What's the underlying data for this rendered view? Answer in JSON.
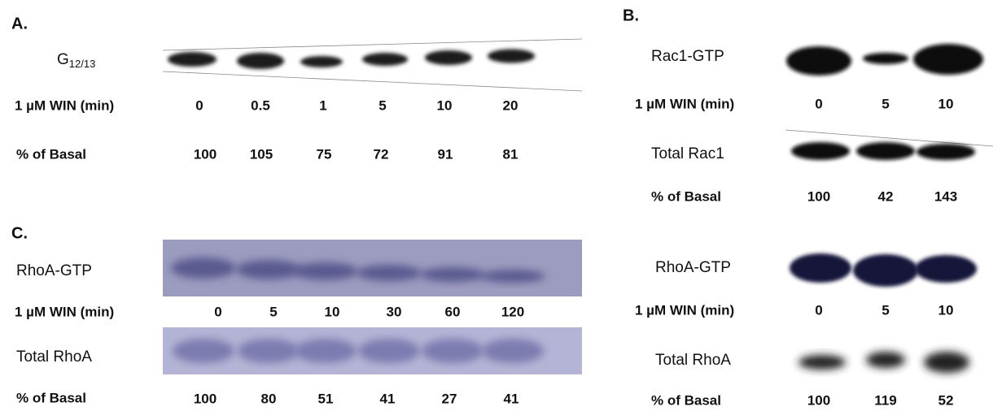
{
  "panel_a": {
    "label": "A.",
    "blot_main": "G",
    "blot_sub": "12/13",
    "time_label": "1 µM WIN (min)",
    "times": [
      0,
      0.5,
      1,
      5,
      10,
      20
    ],
    "basal_label": "% of Basal",
    "basal": [
      100,
      105,
      75,
      72,
      91,
      81
    ]
  },
  "panel_b": {
    "label": "B.",
    "rac1": {
      "gtp_label": "Rac1-GTP",
      "time_label": "1 µM WIN (min)",
      "times": [
        0,
        5,
        10
      ],
      "total_label": "Total Rac1",
      "basal_label": "% of Basal",
      "basal": [
        100,
        42,
        143
      ]
    },
    "rhoa": {
      "gtp_label": "RhoA-GTP",
      "time_label": "1 µM WIN (min)",
      "times": [
        0,
        5,
        10
      ],
      "total_label": "Total RhoA",
      "basal_label": "% of Basal",
      "basal": [
        100,
        119,
        52
      ]
    }
  },
  "panel_c": {
    "label": "C.",
    "gtp_label": "RhoA-GTP",
    "time_label": "1 µM WIN (min)",
    "times": [
      0,
      5,
      10,
      30,
      60,
      120
    ],
    "total_label": "Total RhoA",
    "basal_label": "% of Basal",
    "basal": [
      100,
      80,
      51,
      41,
      27,
      41
    ]
  }
}
